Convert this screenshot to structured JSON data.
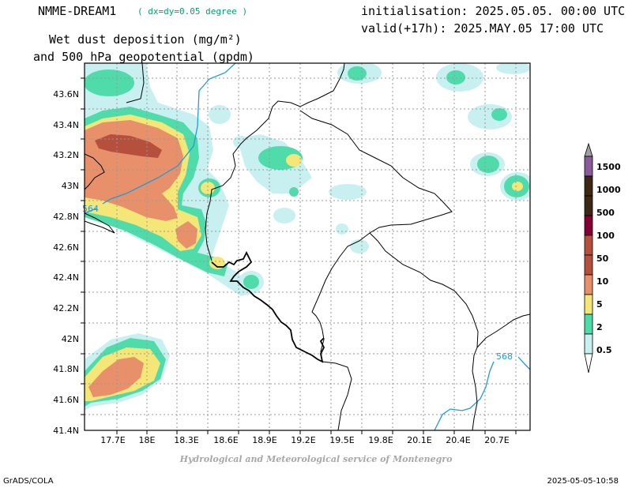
{
  "header": {
    "model_name": "NMME-DREAM1",
    "resolution": "( dx=dy=0.05 degree )",
    "initialisation": "initialisation: 2025.05.05. 00:00 UTC",
    "valid": "valid(+17h): 2025.MAY.05 17:00 UTC",
    "title_line1": "Wet dust deposition (mg/m²)",
    "title_line2": "and 500 hPa geopotential (gpdm)"
  },
  "map": {
    "lon_labels": [
      "17.7E",
      "18E",
      "18.3E",
      "18.6E",
      "18.9E",
      "19.2E",
      "19.5E",
      "19.8E",
      "20.1E",
      "20.4E",
      "20.7E"
    ],
    "lat_labels": [
      "43.6N",
      "43.4N",
      "43.2N",
      "43N",
      "42.8N",
      "42.6N",
      "42.4N",
      "42.2N",
      "42N",
      "41.8N",
      "41.6N",
      "41.4N"
    ],
    "contour_labels": [
      "564",
      "568"
    ],
    "contour_color": "#1e9be0",
    "grid": true
  },
  "legend": {
    "levels": [
      "0.5",
      "2",
      "5",
      "10",
      "50",
      "100",
      "500",
      "1000",
      "1500"
    ],
    "colors": [
      "#c8f0f0",
      "#50dcaa",
      "#f5e678",
      "#e8906a",
      "#b4503c",
      "#820032",
      "#3c2814",
      "#8a5a9a",
      "#a0a0a0"
    ]
  },
  "footer": {
    "credit": "Hydrological and Meteorological service of Montenegro",
    "software": "GrADS/COLA",
    "timestamp": "2025-05-05-10:58"
  }
}
